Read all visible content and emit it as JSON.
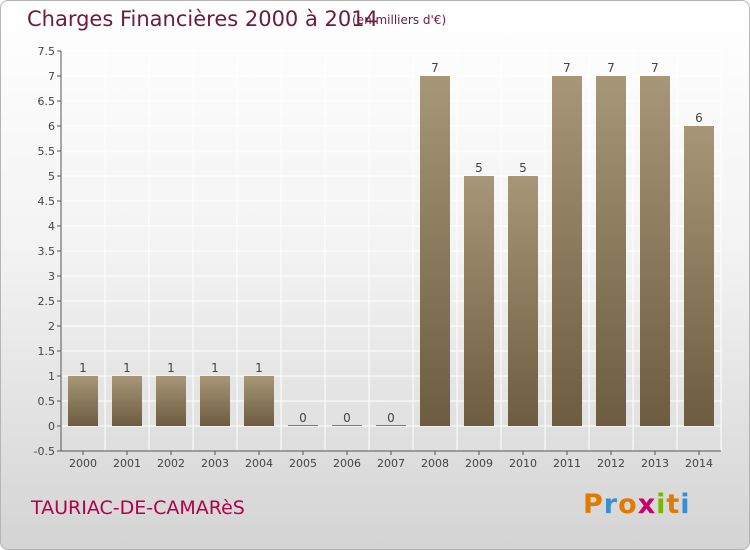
{
  "header": {
    "title": "Charges Financières 2000 à 2014",
    "subtitle": "(en milliers d'€)"
  },
  "footer": {
    "town": "TAURIAC-DE-CAMARèS"
  },
  "logo": {
    "letters": [
      "P",
      "r",
      "o",
      "x",
      "i",
      "t",
      "i"
    ],
    "colors": [
      "#e07b00",
      "#3a8fd0",
      "#e07b00",
      "#c8006a",
      "#7ab800",
      "#e07b00",
      "#3a8fd0"
    ]
  },
  "chart_data": {
    "type": "bar",
    "title": "Charges Financières 2000 à 2014",
    "subtitle": "(en milliers d'€)",
    "categories": [
      "2000",
      "2001",
      "2002",
      "2003",
      "2004",
      "2005",
      "2006",
      "2007",
      "2008",
      "2009",
      "2010",
      "2011",
      "2012",
      "2013",
      "2014"
    ],
    "values": [
      1,
      1,
      1,
      1,
      1,
      0,
      0,
      0,
      7,
      5,
      5,
      7,
      7,
      7,
      6
    ],
    "data_labels": [
      "1",
      "1",
      "1",
      "1",
      "1",
      "0",
      "0",
      "0",
      "7",
      "5",
      "5",
      "7",
      "7",
      "7",
      "6"
    ],
    "ylim": [
      -0.5,
      7.5
    ],
    "yticks": [
      "-0.5",
      "0",
      "0.5",
      "1",
      "1.5",
      "2",
      "2.5",
      "3",
      "3.5",
      "4",
      "4.5",
      "5",
      "5.5",
      "6",
      "6.5",
      "7",
      "7.5"
    ],
    "ytick_values": [
      -0.5,
      0,
      0.5,
      1,
      1.5,
      2,
      2.5,
      3,
      3.5,
      4,
      4.5,
      5,
      5.5,
      6,
      6.5,
      7,
      7.5
    ],
    "grid": true,
    "bar_color_top": "#a89678",
    "bar_color_bottom": "#6e5c40",
    "grid_color": "#ffffff"
  }
}
